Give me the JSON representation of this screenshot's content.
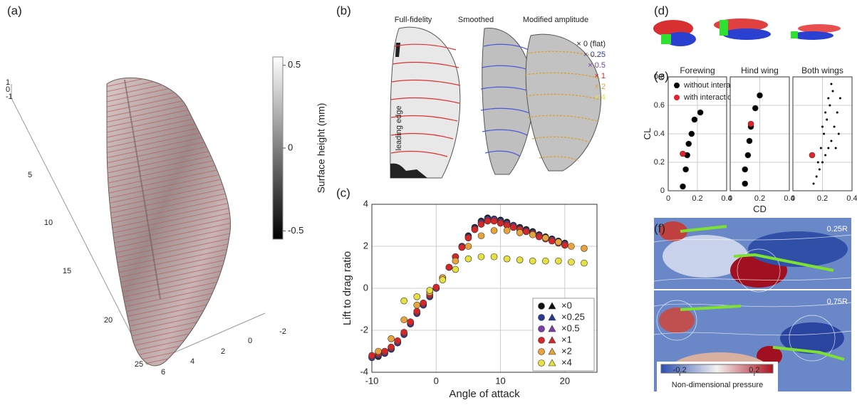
{
  "panel_labels": [
    "(a)",
    "(b)",
    "(c)",
    "(d)",
    "(e)",
    "(f)"
  ],
  "panel_a": {
    "depth_ticks": [
      1,
      0,
      -1
    ],
    "span_ticks": [
      5,
      10,
      15,
      20,
      25
    ],
    "chord_ticks": [
      6,
      4,
      2,
      0,
      -2
    ],
    "colorbar_label": "Surface height (mm)",
    "colorbar_lim": [
      -0.55,
      0.55
    ],
    "colorbar_ticks": [
      0.5,
      0,
      -0.5
    ]
  },
  "panel_b": {
    "headers": [
      "Full-fidelity",
      "Smoothed",
      "Modified amplitude"
    ],
    "annotation": "leading edge",
    "amplitudes": [
      {
        "label": "× 0 (flat)",
        "color": "#222222"
      },
      {
        "label": "× 0.25",
        "color": "#2b3a8c"
      },
      {
        "label": "× 0.5",
        "color": "#7b3fa8"
      },
      {
        "label": "× 1",
        "color": "#d62728"
      },
      {
        "label": "× 2",
        "color": "#e8a33d"
      },
      {
        "label": "× 4",
        "color": "#e6e040"
      }
    ]
  },
  "chart_data": [
    {
      "type": "scatter",
      "xlabel": "Angle of attack",
      "ylabel": "Lift to drag ratio",
      "xlim": [
        -10,
        25
      ],
      "ylim": [
        -4,
        4
      ],
      "xticks": [
        -10,
        0,
        10,
        20
      ],
      "yticks": [
        -4,
        -2,
        0,
        2,
        4
      ],
      "grid": true,
      "legend": "lower right",
      "series": [
        {
          "name": "×0",
          "color": "#111111",
          "x": [
            -10,
            -9,
            -8,
            -7,
            -6,
            -5,
            -4,
            -3,
            -2,
            -1,
            0,
            1,
            2,
            3,
            4,
            5,
            6,
            7,
            8,
            9,
            10,
            11,
            12,
            13,
            14,
            15,
            16,
            17,
            18,
            19,
            20
          ],
          "values": [
            -3.3,
            -3.25,
            -3.1,
            -2.9,
            -2.6,
            -2.2,
            -1.7,
            -1.2,
            -0.8,
            -0.4,
            0,
            0.5,
            1.0,
            1.5,
            2.0,
            2.5,
            2.9,
            3.2,
            3.35,
            3.3,
            3.25,
            3.15,
            3.0,
            2.9,
            2.8,
            2.7,
            2.55,
            2.45,
            2.35,
            2.25,
            2.15
          ]
        },
        {
          "name": "×0.25",
          "color": "#2b3a8c",
          "x": [
            -10,
            -9,
            -8,
            -7,
            -6,
            -5,
            -4,
            -3,
            -2,
            -1,
            0,
            1,
            2,
            3,
            4,
            5,
            6,
            7,
            8,
            9,
            10,
            11,
            12,
            13,
            14,
            15,
            16,
            17,
            18,
            19,
            20
          ],
          "values": [
            -3.3,
            -3.2,
            -3.1,
            -2.9,
            -2.6,
            -2.2,
            -1.7,
            -1.2,
            -0.8,
            -0.4,
            0,
            0.5,
            1.0,
            1.5,
            2.0,
            2.45,
            2.85,
            3.15,
            3.3,
            3.3,
            3.2,
            3.1,
            3.0,
            2.85,
            2.75,
            2.65,
            2.5,
            2.4,
            2.3,
            2.2,
            2.1
          ]
        },
        {
          "name": "×0.5",
          "color": "#7b3fa8",
          "x": [
            -10,
            -9,
            -8,
            -7,
            -6,
            -5,
            -4,
            -3,
            -2,
            -1,
            0,
            1,
            2,
            3,
            4,
            5,
            6,
            7,
            8,
            9,
            10,
            11,
            12,
            13,
            14,
            15,
            16,
            17,
            18,
            19,
            20
          ],
          "values": [
            -3.25,
            -3.15,
            -3.05,
            -2.85,
            -2.55,
            -2.15,
            -1.65,
            -1.15,
            -0.75,
            -0.35,
            0,
            0.5,
            1.0,
            1.5,
            1.95,
            2.4,
            2.8,
            3.1,
            3.25,
            3.25,
            3.15,
            3.05,
            2.95,
            2.8,
            2.7,
            2.6,
            2.5,
            2.4,
            2.3,
            2.2,
            2.1
          ]
        },
        {
          "name": "×1",
          "color": "#d62728",
          "x": [
            -10,
            -9,
            -8,
            -7,
            -6,
            -5,
            -4,
            -3,
            -2,
            -1,
            0,
            1,
            2,
            3,
            4,
            5,
            6,
            7,
            8,
            9,
            10,
            11,
            12,
            13,
            14,
            15,
            16,
            17,
            18,
            19,
            20
          ],
          "values": [
            -3.2,
            -3.1,
            -3.0,
            -2.8,
            -2.5,
            -2.1,
            -1.6,
            -1.1,
            -0.7,
            -0.3,
            0.05,
            0.5,
            1.0,
            1.5,
            1.95,
            2.4,
            2.8,
            3.05,
            3.2,
            3.2,
            3.1,
            3.0,
            2.9,
            2.8,
            2.7,
            2.6,
            2.45,
            2.35,
            2.25,
            2.15,
            2.05
          ]
        },
        {
          "name": "×2",
          "color": "#e8a33d",
          "x": [
            -9,
            -7,
            -5,
            -3,
            -1,
            1,
            3,
            5,
            7,
            9,
            11,
            13,
            15,
            17,
            19,
            21,
            23
          ],
          "values": [
            -3.0,
            -2.4,
            -1.5,
            -0.8,
            -0.2,
            0.5,
            1.3,
            2.0,
            2.5,
            2.75,
            2.75,
            2.65,
            2.55,
            2.4,
            2.2,
            2.0,
            1.9
          ]
        },
        {
          "name": "×4",
          "color": "#e6e040",
          "x": [
            -5,
            -3,
            -1,
            1,
            3,
            5,
            7,
            9,
            11,
            13,
            15,
            17,
            19,
            21,
            23
          ],
          "values": [
            -0.6,
            -0.4,
            -0.1,
            0.4,
            0.9,
            1.4,
            1.5,
            1.5,
            1.4,
            1.35,
            1.3,
            1.3,
            1.3,
            1.25,
            1.2
          ]
        }
      ]
    },
    {
      "type": "scatter",
      "title": "Forewing",
      "ylabel": "CL",
      "xlim": [
        0,
        0.4
      ],
      "ylim": [
        0,
        0.8
      ],
      "xticks": [
        0,
        0.2,
        0.4
      ],
      "yticks": [
        0,
        0.2,
        0.4,
        0.6,
        0.8
      ],
      "grid": true,
      "legend": "upper left",
      "series": [
        {
          "name": "without interaction",
          "color": "#000000",
          "x": [
            0.1,
            0.12,
            0.13,
            0.14,
            0.16,
            0.18,
            0.22
          ],
          "values": [
            0.03,
            0.15,
            0.25,
            0.33,
            0.4,
            0.5,
            0.55
          ]
        },
        {
          "name": "with interaction",
          "color": "#e8202a",
          "x": [
            0.1
          ],
          "values": [
            0.26
          ]
        }
      ]
    },
    {
      "type": "scatter",
      "title": "Hind wing",
      "xlabel": "CD",
      "xlim": [
        0,
        0.4
      ],
      "ylim": [
        0,
        0.8
      ],
      "xticks": [
        0,
        0.2,
        0.4
      ],
      "yticks": [
        0,
        0.2,
        0.4,
        0.6,
        0.8
      ],
      "grid": true,
      "ytick_labels": false,
      "series": [
        {
          "color": "#000000",
          "x": [
            0.1,
            0.1,
            0.12,
            0.13,
            0.14,
            0.17,
            0.2
          ],
          "values": [
            0.05,
            0.15,
            0.25,
            0.35,
            0.45,
            0.58,
            0.67
          ]
        },
        {
          "color": "#e8202a",
          "x": [
            0.14
          ],
          "values": [
            0.47
          ]
        }
      ]
    },
    {
      "type": "scatter",
      "title": "Both wings",
      "xlim": [
        0,
        0.4
      ],
      "ylim": [
        0,
        0.8
      ],
      "xticks": [
        0,
        0.2,
        0.4
      ],
      "yticks": [
        0,
        0.2,
        0.4,
        0.6,
        0.8
      ],
      "grid": true,
      "ytick_labels": false,
      "series": [
        {
          "color": "#000000",
          "marker_size": 1.5,
          "x": [
            0.14,
            0.16,
            0.18,
            0.2,
            0.22,
            0.24,
            0.26,
            0.28,
            0.3,
            0.32,
            0.17,
            0.19,
            0.21,
            0.23,
            0.25,
            0.27,
            0.2,
            0.22,
            0.24,
            0.26,
            0.29,
            0.31
          ],
          "values": [
            0.05,
            0.1,
            0.15,
            0.2,
            0.25,
            0.3,
            0.35,
            0.45,
            0.55,
            0.65,
            0.2,
            0.3,
            0.4,
            0.5,
            0.6,
            0.7,
            0.45,
            0.55,
            0.65,
            0.75,
            0.3,
            0.4
          ]
        },
        {
          "color": "#e8202a",
          "x": [
            0.13
          ],
          "values": [
            0.25
          ]
        }
      ]
    }
  ],
  "panel_f": {
    "sections": [
      "0.25R",
      "0.75R"
    ],
    "colorbar_label": "Non-dimensional pressure",
    "colorbar_lim": [
      -0.3,
      0.3
    ],
    "colorbar_ticks": [
      -0.2,
      0.2
    ]
  }
}
